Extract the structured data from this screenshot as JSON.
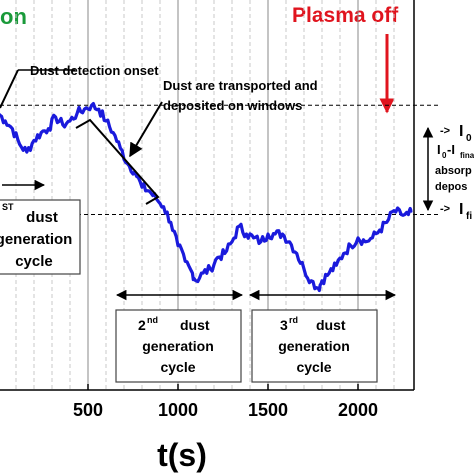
{
  "chart_data": {
    "type": "line",
    "xlabel": "t(s)",
    "xlim": [
      0,
      2300
    ],
    "ylim": [
      0,
      1
    ],
    "x_ticks": [
      500,
      1000,
      1500,
      2000
    ],
    "x_tick_labels": [
      "500",
      "1000",
      "1500",
      "2000"
    ],
    "plasma_on_label": "on",
    "plasma_off_label": "Plasma off",
    "annotations": {
      "onset": "Dust detection onset",
      "transport_line1": "Dust are transported and",
      "transport_line2": "deposited on windows",
      "ref_I0": "I",
      "ref_I0_sub": "0",
      "ref_Ifinal": "I",
      "ref_Ifinal_sub": "fi",
      "absorb_line1": "I",
      "absorb_line1_sub": "0",
      "absorb_line1_rest": "-I",
      "absorb_line1_sub2": "fina",
      "absorb_line2": "absorp",
      "absorb_line3": "depos",
      "arrow_prefix": "->"
    },
    "boxes": [
      {
        "sup": "ST",
        "line1": "dust",
        "line2": "generation",
        "line3": "cycle"
      },
      {
        "ordinal": "2",
        "sup": "nd",
        "line1": "dust",
        "line2": "generation",
        "line3": "cycle"
      },
      {
        "ordinal": "3",
        "sup": "rd",
        "line1": "dust",
        "line2": "generation",
        "line3": "cycle"
      }
    ],
    "I0_level": 0.73,
    "Ifinal_level": 0.45,
    "series": [
      {
        "color": "#1a1adc",
        "x": [
          0,
          40,
          80,
          120,
          160,
          200,
          240,
          280,
          320,
          360,
          400,
          440,
          480,
          520,
          560,
          600,
          640,
          680,
          720,
          760,
          800,
          840,
          880,
          920,
          960,
          1000,
          1040,
          1080,
          1100,
          1140,
          1180,
          1220,
          1260,
          1300,
          1340,
          1380,
          1420,
          1460,
          1500,
          1540,
          1580,
          1620,
          1660,
          1700,
          1740,
          1780,
          1800,
          1840,
          1880,
          1920,
          1960,
          2000,
          2040,
          2080,
          2120,
          2160,
          2200,
          2240,
          2280,
          2300
        ],
        "y": [
          0.71,
          0.69,
          0.67,
          0.63,
          0.61,
          0.64,
          0.66,
          0.67,
          0.7,
          0.68,
          0.69,
          0.71,
          0.72,
          0.73,
          0.72,
          0.69,
          0.66,
          0.62,
          0.58,
          0.56,
          0.52,
          0.51,
          0.49,
          0.47,
          0.43,
          0.37,
          0.33,
          0.3,
          0.28,
          0.3,
          0.31,
          0.34,
          0.35,
          0.38,
          0.42,
          0.4,
          0.39,
          0.38,
          0.4,
          0.4,
          0.4,
          0.38,
          0.35,
          0.31,
          0.28,
          0.26,
          0.28,
          0.3,
          0.32,
          0.35,
          0.37,
          0.39,
          0.38,
          0.39,
          0.41,
          0.43,
          0.46,
          0.45,
          0.45,
          0.46
        ]
      }
    ]
  }
}
